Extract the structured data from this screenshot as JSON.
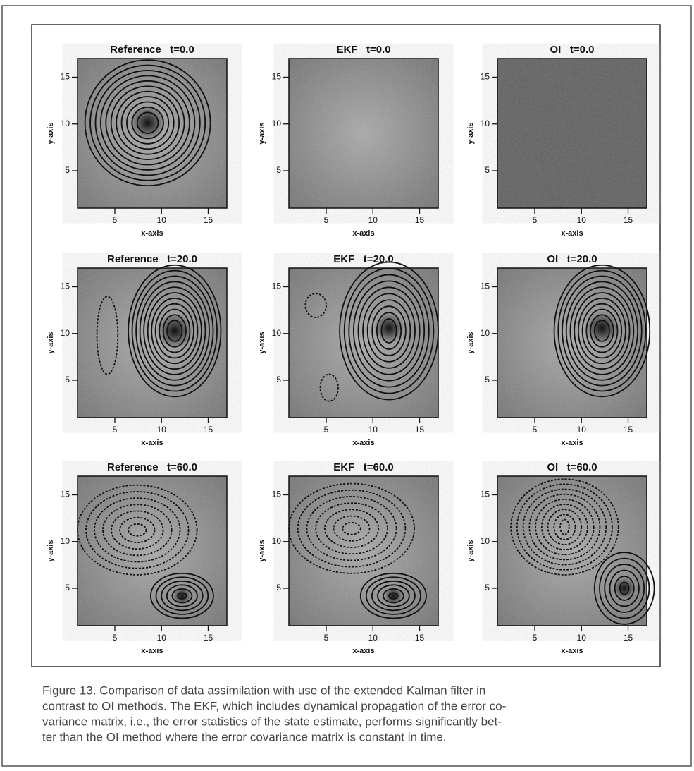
{
  "figure": {
    "panels": [
      {
        "title": "Reference   t=0.0",
        "xlabel": "x-axis",
        "ylabel": "y-axis",
        "xlim": [
          1,
          17
        ],
        "ylim": [
          1,
          17
        ],
        "xticks": [
          5,
          10,
          15
        ],
        "yticks": [
          5,
          10,
          15
        ]
      },
      {
        "title": "EKF   t=0.0",
        "xlabel": "x-axis",
        "ylabel": "y-axis",
        "xlim": [
          1,
          17
        ],
        "ylim": [
          1,
          17
        ],
        "xticks": [
          5,
          10,
          15
        ],
        "yticks": [
          5,
          10,
          15
        ]
      },
      {
        "title": "OI   t=0.0",
        "xlabel": "x-axis",
        "ylabel": "y-axis",
        "xlim": [
          1,
          17
        ],
        "ylim": [
          1,
          17
        ],
        "xticks": [
          5,
          10,
          15
        ],
        "yticks": [
          5,
          10,
          15
        ]
      },
      {
        "title": "Reference   t=20.0",
        "xlabel": "x-axis",
        "ylabel": "y-axis",
        "xlim": [
          1,
          17
        ],
        "ylim": [
          1,
          17
        ],
        "xticks": [
          5,
          10,
          15
        ],
        "yticks": [
          5,
          10,
          15
        ]
      },
      {
        "title": "EKF   t=20.0",
        "xlabel": "x-axis",
        "ylabel": "y-axis",
        "xlim": [
          1,
          17
        ],
        "ylim": [
          1,
          17
        ],
        "xticks": [
          5,
          10,
          15
        ],
        "yticks": [
          5,
          10,
          15
        ]
      },
      {
        "title": "OI   t=20.0",
        "xlabel": "x-axis",
        "ylabel": "y-axis",
        "xlim": [
          1,
          17
        ],
        "ylim": [
          1,
          17
        ],
        "xticks": [
          5,
          10,
          15
        ],
        "yticks": [
          5,
          10,
          15
        ]
      },
      {
        "title": "Reference   t=60.0",
        "xlabel": "x-axis",
        "ylabel": "y-axis",
        "xlim": [
          1,
          17
        ],
        "ylim": [
          1,
          17
        ],
        "xticks": [
          5,
          10,
          15
        ],
        "yticks": [
          5,
          10,
          15
        ]
      },
      {
        "title": "EKF   t=60.0",
        "xlabel": "x-axis",
        "ylabel": "y-axis",
        "xlim": [
          1,
          17
        ],
        "ylim": [
          1,
          17
        ],
        "xticks": [
          5,
          10,
          15
        ],
        "yticks": [
          5,
          10,
          15
        ]
      },
      {
        "title": "OI   t=60.0",
        "xlabel": "x-axis",
        "ylabel": "y-axis",
        "xlim": [
          1,
          17
        ],
        "ylim": [
          1,
          17
        ],
        "xticks": [
          5,
          10,
          15
        ],
        "yticks": [
          5,
          10,
          15
        ]
      }
    ],
    "caption": [
      "Figure 13. Comparison of data assimilation with use of the extended Kalman filter in",
      "contrast to OI methods. The EKF, which includes dynamical propagation of the error co-",
      "variance matrix, i.e., the error statistics of the state estimate, performs significantly bet-",
      "ter than the OI method where the error covariance matrix is constant in time."
    ]
  }
}
